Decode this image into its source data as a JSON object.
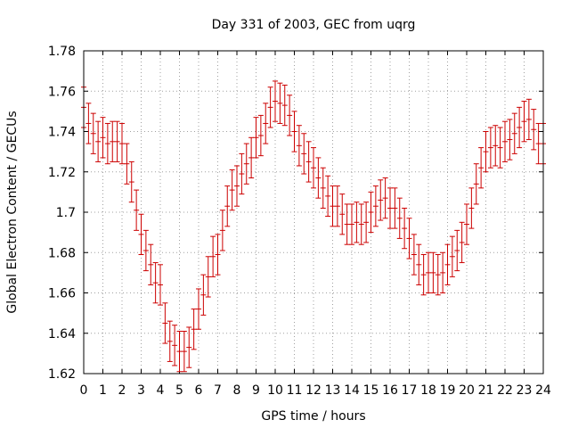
{
  "chart_data": {
    "type": "scatter",
    "title": "Day 331 of 2003, GEC from uqrg",
    "xlabel": "GPS time / hours",
    "ylabel": "Global Electron Content / GECUs",
    "xlim": [
      0,
      24
    ],
    "ylim": [
      1.62,
      1.78
    ],
    "grid": true,
    "xticks": [
      0,
      1,
      2,
      3,
      4,
      5,
      6,
      7,
      8,
      9,
      10,
      11,
      12,
      13,
      14,
      15,
      16,
      17,
      18,
      19,
      20,
      21,
      22,
      23,
      24
    ],
    "xtick_labels": [
      "0",
      "1",
      "2",
      "3",
      "4",
      "5",
      "6",
      "7",
      "8",
      "9",
      "10",
      "11",
      "12",
      "13",
      "14",
      "15",
      "16",
      "17",
      "18",
      "19",
      "20",
      "21",
      "22",
      "23",
      "24"
    ],
    "yticks": [
      1.62,
      1.64,
      1.66,
      1.68,
      1.7,
      1.72,
      1.74,
      1.76,
      1.78
    ],
    "ytick_labels": [
      "1.62",
      "1.64",
      "1.66",
      "1.68",
      "1.7",
      "1.72",
      "1.74",
      "1.76",
      "1.78"
    ],
    "error": 0.01,
    "series": [
      {
        "name": "GEC",
        "color": "#cc0000",
        "x": [
          0.0,
          0.25,
          0.5,
          0.75,
          1.0,
          1.25,
          1.5,
          1.75,
          2.0,
          2.25,
          2.5,
          2.75,
          3.0,
          3.25,
          3.5,
          3.75,
          4.0,
          4.25,
          4.5,
          4.75,
          5.0,
          5.25,
          5.5,
          5.75,
          6.0,
          6.25,
          6.5,
          6.75,
          7.0,
          7.25,
          7.5,
          7.75,
          8.0,
          8.25,
          8.5,
          8.75,
          9.0,
          9.25,
          9.5,
          9.75,
          10.0,
          10.25,
          10.5,
          10.75,
          11.0,
          11.25,
          11.5,
          11.75,
          12.0,
          12.25,
          12.5,
          12.75,
          13.0,
          13.25,
          13.5,
          13.75,
          14.0,
          14.25,
          14.5,
          14.75,
          15.0,
          15.25,
          15.5,
          15.75,
          16.0,
          16.25,
          16.5,
          16.75,
          17.0,
          17.25,
          17.5,
          17.75,
          18.0,
          18.25,
          18.5,
          18.75,
          19.0,
          19.25,
          19.5,
          19.75,
          20.0,
          20.25,
          20.5,
          20.75,
          21.0,
          21.25,
          21.5,
          21.75,
          22.0,
          22.25,
          22.5,
          22.75,
          23.0,
          23.25,
          23.5,
          23.75,
          24.0
        ],
        "y": [
          1.752,
          1.744,
          1.739,
          1.735,
          1.737,
          1.734,
          1.735,
          1.735,
          1.734,
          1.724,
          1.715,
          1.701,
          1.689,
          1.681,
          1.674,
          1.665,
          1.664,
          1.645,
          1.636,
          1.634,
          1.631,
          1.631,
          1.633,
          1.642,
          1.652,
          1.659,
          1.668,
          1.678,
          1.679,
          1.691,
          1.703,
          1.711,
          1.713,
          1.719,
          1.724,
          1.727,
          1.737,
          1.738,
          1.744,
          1.752,
          1.755,
          1.754,
          1.753,
          1.748,
          1.74,
          1.733,
          1.729,
          1.725,
          1.722,
          1.717,
          1.712,
          1.708,
          1.703,
          1.703,
          1.699,
          1.694,
          1.694,
          1.695,
          1.694,
          1.695,
          1.7,
          1.703,
          1.706,
          1.707,
          1.702,
          1.702,
          1.697,
          1.692,
          1.687,
          1.679,
          1.674,
          1.669,
          1.67,
          1.67,
          1.669,
          1.67,
          1.674,
          1.678,
          1.681,
          1.685,
          1.694,
          1.702,
          1.714,
          1.722,
          1.73,
          1.732,
          1.733,
          1.732,
          1.735,
          1.736,
          1.739,
          1.742,
          1.745,
          1.746,
          1.741,
          1.734,
          1.734
        ]
      }
    ]
  }
}
